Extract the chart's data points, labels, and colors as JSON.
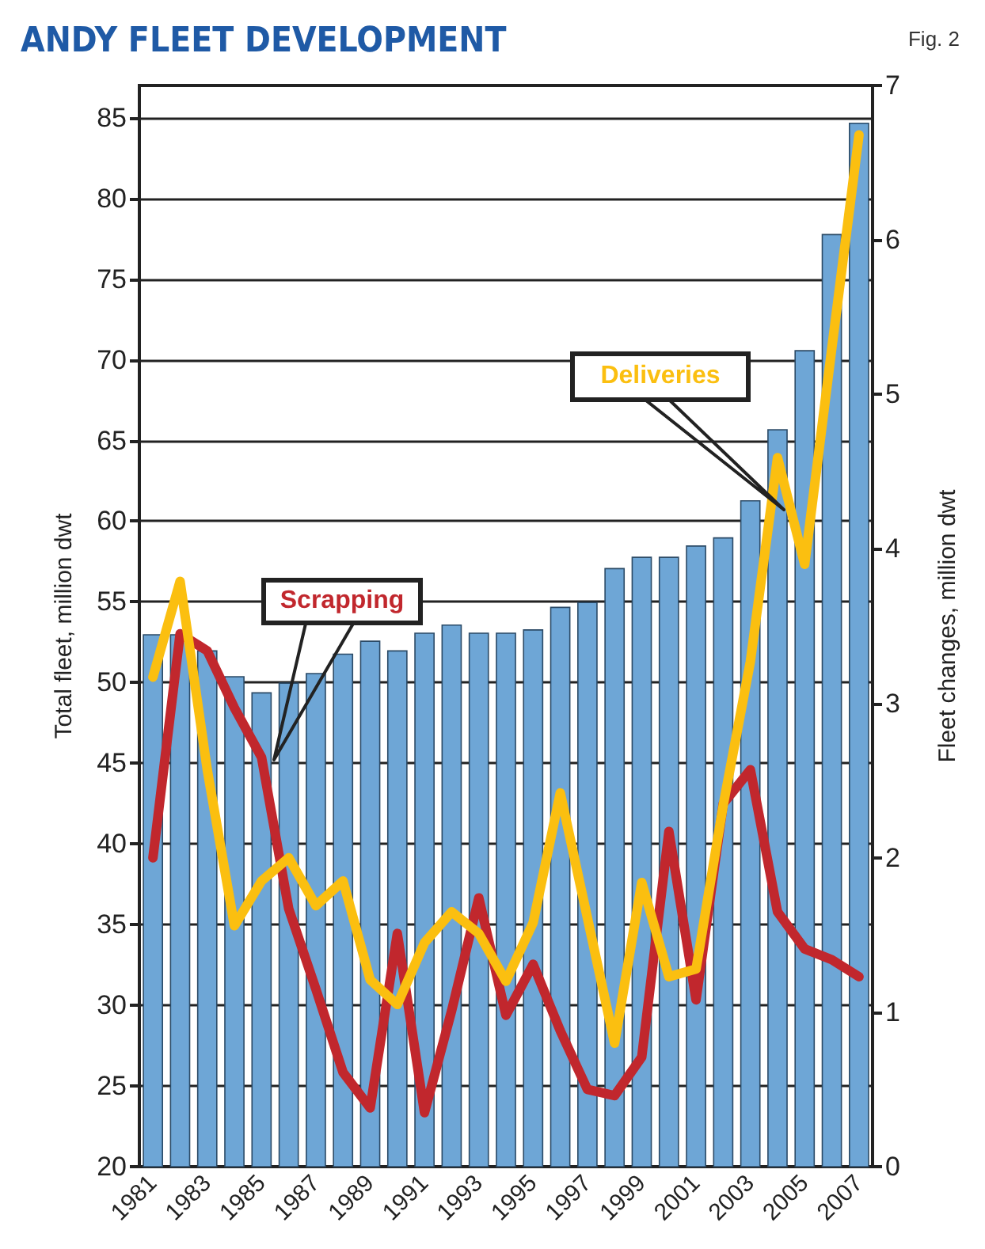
{
  "chart_data": {
    "type": "bar",
    "title": "ANDY FLEET DEVELOPMENT",
    "ylabel": "Total fleet, million dwt",
    "y2label": "Fleet changes, million dwt",
    "annotations": [
      "Fig. 2"
    ],
    "categories": [
      "1981",
      null,
      "1983",
      null,
      "1985",
      null,
      "1987",
      null,
      "1989",
      null,
      "1991",
      null,
      "1993",
      null,
      "1995",
      null,
      "1997",
      null,
      "1999",
      null,
      "2001",
      null,
      "2003",
      null,
      "2005",
      null,
      "2007"
    ],
    "series": [
      {
        "color": "#6ea6d6",
        "values": [
          53,
          53,
          52,
          50.4,
          49.4,
          50,
          50.6,
          51.8,
          52.6,
          52,
          53.1,
          53.6,
          53.1,
          53.1,
          53.3,
          54.7,
          55,
          57.1,
          57.8,
          57.8,
          58.5,
          59,
          61.3,
          65.7,
          70.6,
          77.8,
          84.7
        ]
      },
      {
        "type": "line",
        "name": "Scrapping",
        "axis": "y2",
        "color": "#c1272d",
        "values": [
          2.0,
          3.45,
          3.34,
          2.97,
          2.65,
          1.67,
          1.15,
          0.61,
          0.38,
          1.51,
          0.35,
          1.01,
          1.74,
          0.98,
          1.31,
          0.88,
          0.5,
          0.46,
          0.71,
          2.17,
          1.08,
          2.35,
          2.57,
          1.65,
          1.41,
          1.34,
          1.23
        ]
      },
      {
        "type": "line",
        "name": "Deliveries",
        "axis": "y2",
        "color": "#fbbf10",
        "values": [
          3.17,
          3.79,
          2.57,
          1.56,
          1.85,
          2.0,
          1.69,
          1.85,
          1.21,
          1.05,
          1.45,
          1.65,
          1.51,
          1.2,
          1.58,
          2.42,
          1.61,
          0.8,
          1.84,
          1.23,
          1.28,
          2.34,
          3.27,
          4.59,
          3.9,
          5.3,
          6.68
        ]
      }
    ],
    "ylim": [
      20,
      87
    ],
    "yticks": [
      20,
      25,
      30,
      35,
      40,
      45,
      50,
      55,
      60,
      65,
      70,
      75,
      80,
      85
    ],
    "y2lim": [
      0,
      7
    ],
    "y2ticks": [
      0,
      1,
      2,
      3,
      4,
      5,
      6,
      7
    ],
    "grid": "y",
    "legend": false,
    "marker": "none",
    "line_style": "solid"
  }
}
